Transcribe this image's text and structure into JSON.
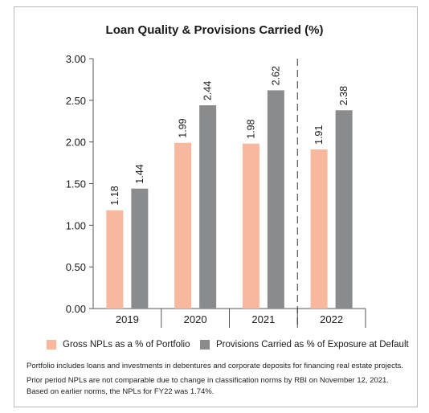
{
  "chart_data": {
    "type": "bar",
    "title": "Loan Quality & Provisions Carried (%)",
    "categories": [
      "2019",
      "2020",
      "2021",
      "2022"
    ],
    "series": [
      {
        "name": "Gross NPLs as a % of Portfolio",
        "values": [
          1.18,
          1.99,
          1.98,
          1.91
        ],
        "color": "#f7b89e"
      },
      {
        "name": "Provisions Carried as % of Exposure at Default",
        "values": [
          1.44,
          2.44,
          2.62,
          2.38
        ],
        "color": "#8a8b8d"
      }
    ],
    "ylim": [
      0,
      3.0
    ],
    "yticks": [
      "0.00",
      "0.50",
      "1.00",
      "1.50",
      "2.00",
      "2.50",
      "3.00"
    ],
    "data_labels": [
      [
        "1.18",
        "1.99",
        "1.98",
        "1.91"
      ],
      [
        "1.44",
        "2.44",
        "2.62",
        "2.38"
      ]
    ],
    "xlabel": "",
    "ylabel": "",
    "grid": false,
    "legend_position": "bottom",
    "dashed_separator_before": "2022"
  },
  "footnotes": [
    "Portfolio includes loans and investments in debentures and corporate deposits for financing real estate projects.",
    "Prior period NPLs are not comparable due to change in classification norms by RBI on November 12, 2021.",
    "Based on earlier norms, the NPLs for FY22 was 1.74%."
  ]
}
